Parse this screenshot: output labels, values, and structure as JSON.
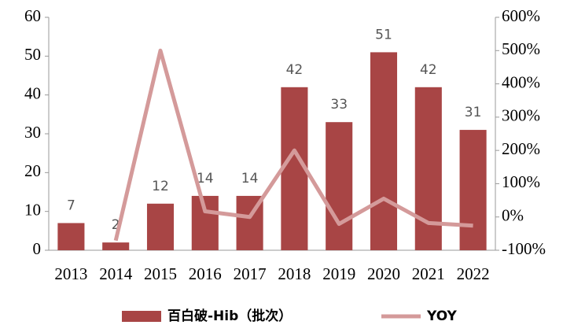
{
  "chart_data": {
    "type": "bar",
    "categories": [
      "2013",
      "2014",
      "2015",
      "2016",
      "2017",
      "2018",
      "2019",
      "2020",
      "2021",
      "2022"
    ],
    "series": [
      {
        "name": "百白破-Hib（批次）",
        "type": "bar",
        "color": "#a84545",
        "values": [
          7,
          2,
          12,
          14,
          14,
          42,
          33,
          51,
          42,
          31
        ]
      },
      {
        "name": "YOY",
        "type": "line",
        "axis": "y2",
        "color": "#d49a9a",
        "values": [
          null,
          -71,
          500,
          17,
          0,
          200,
          -21,
          55,
          -18,
          -26
        ]
      }
    ],
    "ylim": [
      0,
      60
    ],
    "yticks": [
      0,
      10,
      20,
      30,
      40,
      50,
      60
    ],
    "y2lim": [
      -100,
      600
    ],
    "y2ticks": [
      {
        "value": -100,
        "label": "-100%"
      },
      {
        "value": 0,
        "label": "0%"
      },
      {
        "value": 100,
        "label": "100%"
      },
      {
        "value": 200,
        "label": "200%"
      },
      {
        "value": 300,
        "label": "300%"
      },
      {
        "value": 400,
        "label": "400%"
      },
      {
        "value": 500,
        "label": "500%"
      },
      {
        "value": 600,
        "label": "600%"
      }
    ]
  }
}
